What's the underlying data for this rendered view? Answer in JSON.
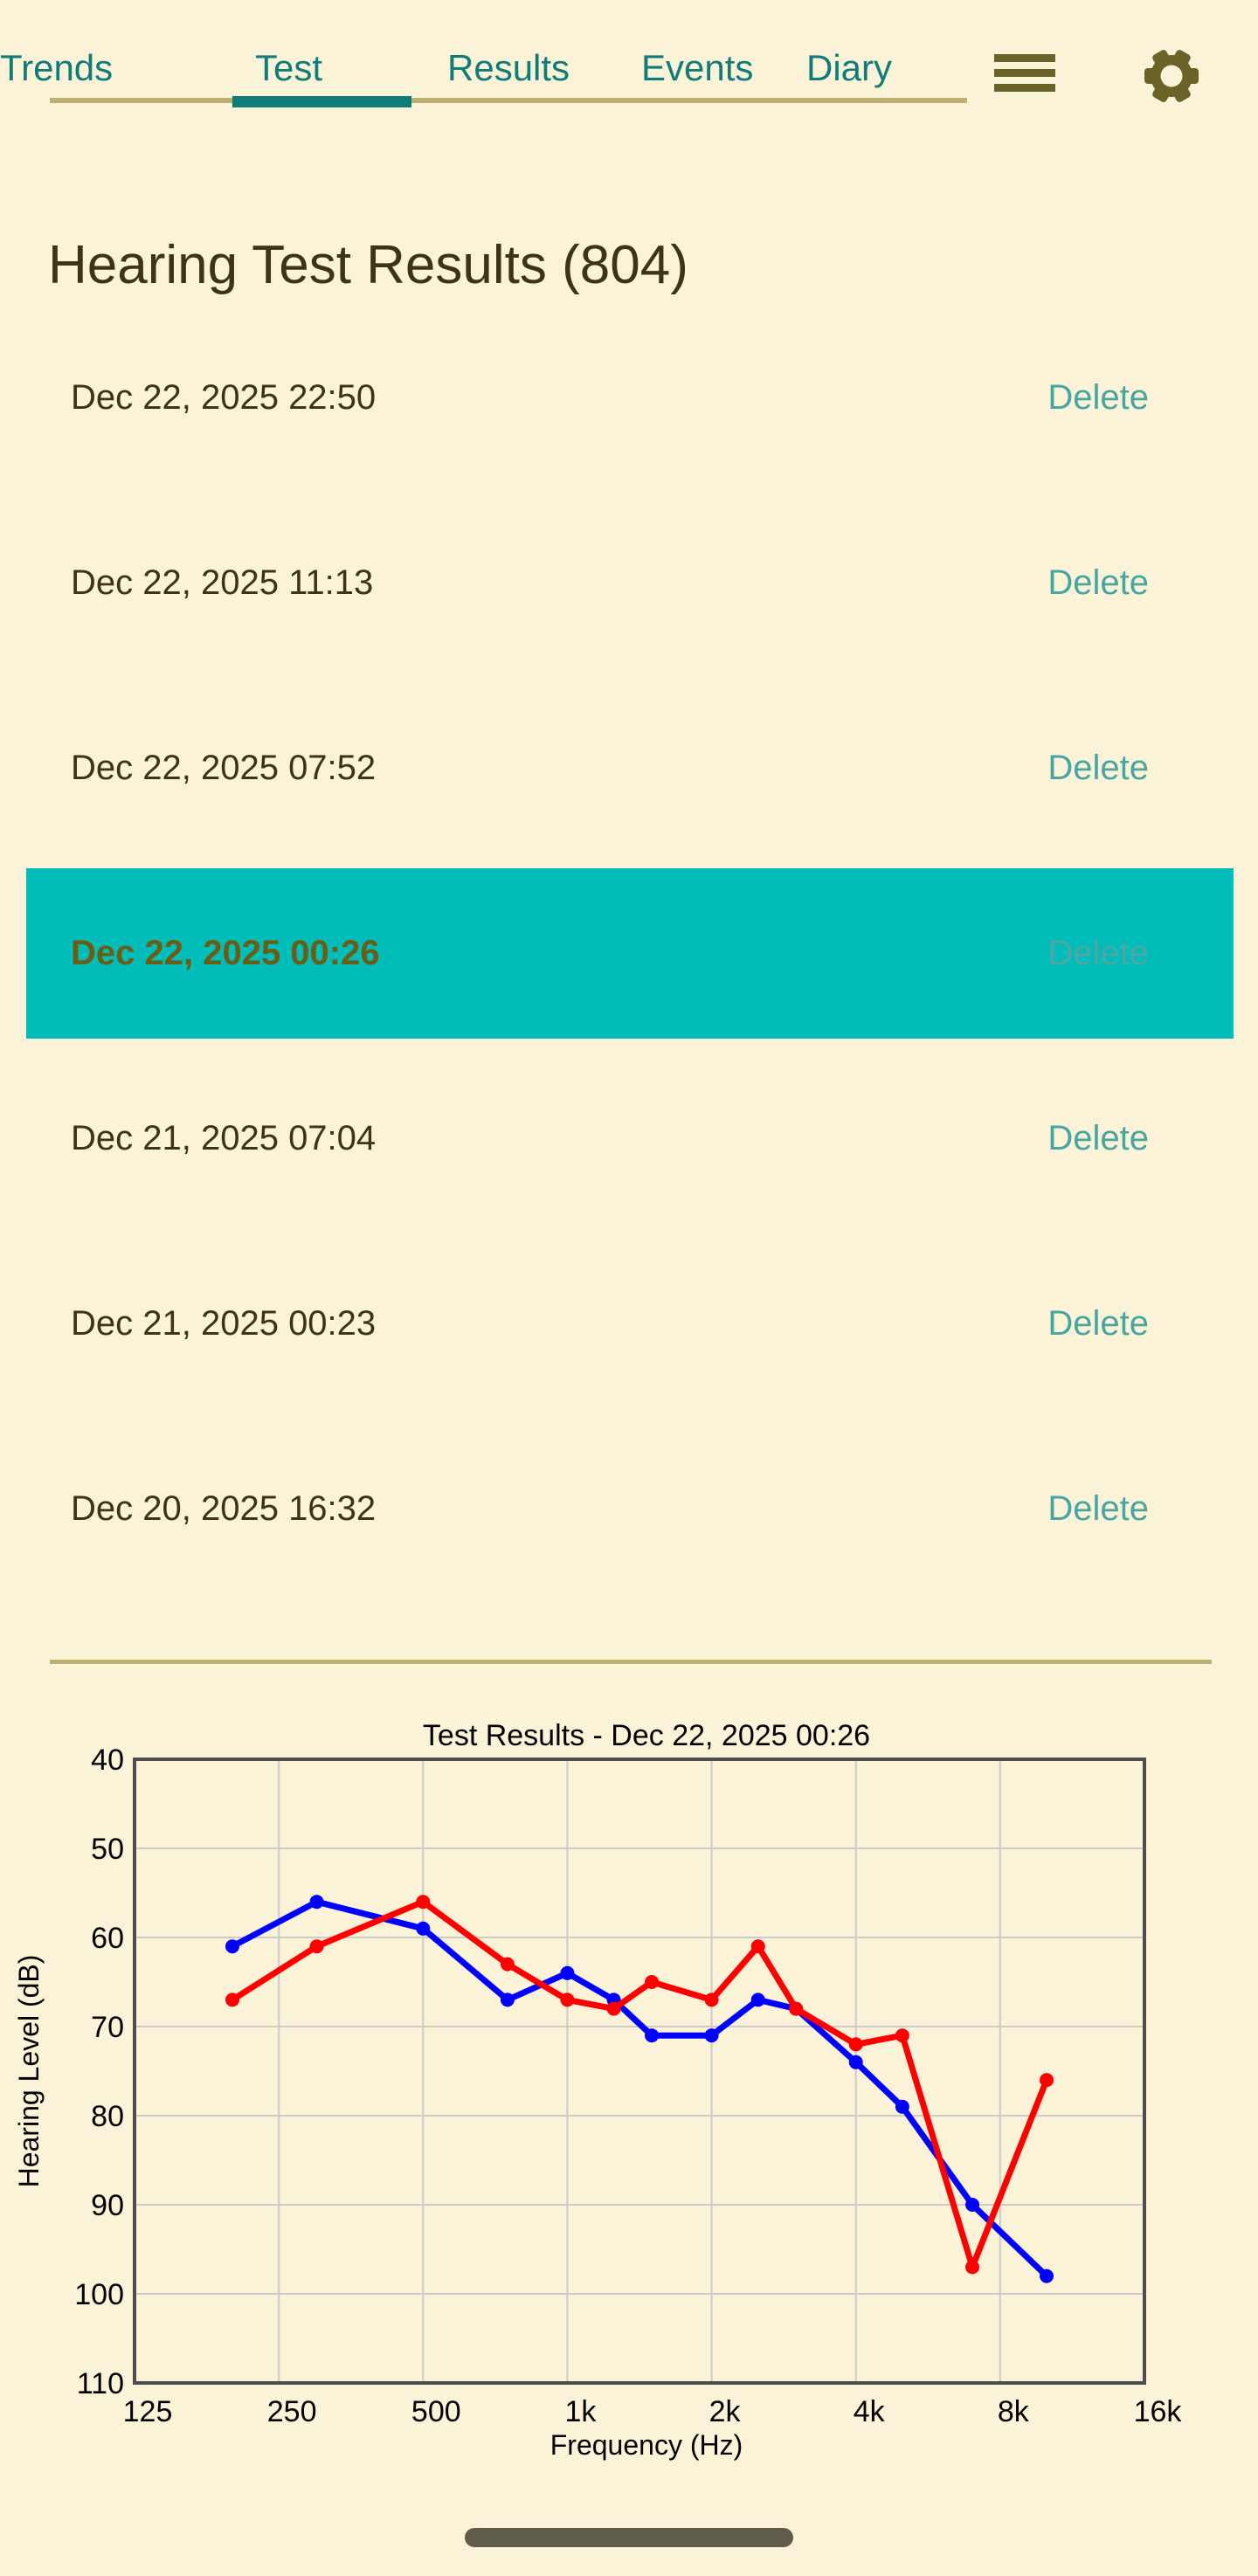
{
  "colors": {
    "bg": "#FBF3D7",
    "tabTeal": "#0F7C79",
    "tanLine": "#BDB172",
    "oliveIcon": "#6B6228",
    "titleText": "#3B3418",
    "rowText": "#3B3418",
    "deleteTeal": "#47A5A2",
    "selectedBg": "#00BDB9",
    "selectedDate": "#6D5D12",
    "selectedDelete": "#4FA6A2",
    "homeBar": "#5F5C4B",
    "chartBlue": "#0000FF",
    "chartRed": "#FF0000",
    "chartGrid": "#CBCBCB",
    "chartBorder": "#4D4D4D",
    "chartText": "#000000"
  },
  "tab_bar": {
    "tabs": [
      {
        "label": "Test",
        "selected": false
      },
      {
        "label": "Results",
        "selected": true
      },
      {
        "label": "Events",
        "selected": false
      },
      {
        "label": "Diary",
        "selected": false
      },
      {
        "label": "Trends",
        "selected": false
      }
    ]
  },
  "header": {
    "title": "Hearing Test Results (804)"
  },
  "results_list": {
    "delete_label": "Delete",
    "rows": [
      {
        "date": "Dec 22, 2025 22:50",
        "selected": false
      },
      {
        "date": "Dec 22, 2025 11:13",
        "selected": false
      },
      {
        "date": "Dec 22, 2025 07:52",
        "selected": false
      },
      {
        "date": "Dec 22, 2025 00:26",
        "selected": true
      },
      {
        "date": "Dec 21, 2025 07:04",
        "selected": false
      },
      {
        "date": "Dec 21, 2025 00:23",
        "selected": false
      },
      {
        "date": "Dec 20, 2025 16:32",
        "selected": false
      }
    ]
  },
  "chart_data": {
    "type": "line",
    "title": "Test Results - Dec 22, 2025 00:26",
    "xlabel": "Frequency (Hz)",
    "ylabel": "Hearing Level (dB)",
    "x_scale": "log2",
    "xlim": [
      125,
      16000
    ],
    "ylim": [
      40,
      110
    ],
    "y_inverted": true,
    "grid": true,
    "legend": "none",
    "y_ticks": [
      40,
      50,
      60,
      70,
      80,
      90,
      100,
      110
    ],
    "x_ticks": [
      {
        "value": 125,
        "label": "125"
      },
      {
        "value": 250,
        "label": "250"
      },
      {
        "value": 500,
        "label": "500"
      },
      {
        "value": 1000,
        "label": "1k"
      },
      {
        "value": 2000,
        "label": "2k"
      },
      {
        "value": 4000,
        "label": "4k"
      },
      {
        "value": 8000,
        "label": "8k"
      },
      {
        "value": 16000,
        "label": "16k"
      }
    ],
    "x": [
      200,
      300,
      500,
      750,
      1000,
      1250,
      1500,
      2000,
      2500,
      3000,
      4000,
      5000,
      7000,
      10000
    ],
    "series": [
      {
        "name": "blue-line",
        "color_key": "chartBlue",
        "values": [
          61,
          56,
          59,
          67,
          64,
          67,
          71,
          71,
          67,
          68,
          74,
          79,
          90,
          98
        ]
      },
      {
        "name": "red-line",
        "color_key": "chartRed",
        "values": [
          67,
          61,
          56,
          63,
          67,
          68,
          65,
          67,
          61,
          68,
          72,
          71,
          97,
          76
        ]
      }
    ]
  }
}
